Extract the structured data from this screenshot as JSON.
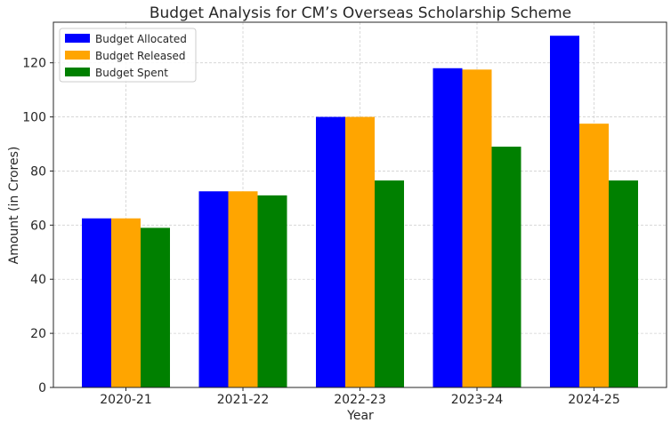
{
  "chart_data": {
    "type": "bar",
    "title": "Budget Analysis for CM’s Overseas Scholarship Scheme",
    "xlabel": "Year",
    "ylabel": "Amount (in Crores)",
    "categories": [
      "2020-21",
      "2021-22",
      "2022-23",
      "2023-24",
      "2024-25"
    ],
    "ylim": [
      0,
      135
    ],
    "yticks": [
      0,
      20,
      40,
      60,
      80,
      100,
      120
    ],
    "grid": true,
    "legend_position": "top-left",
    "series": [
      {
        "name": "Budget Allocated",
        "color": "#0000ff",
        "values": [
          62.5,
          72.5,
          100,
          118,
          130
        ]
      },
      {
        "name": "Budget Released",
        "color": "#ffa500",
        "values": [
          62.5,
          72.5,
          100,
          117.5,
          97.5
        ]
      },
      {
        "name": "Budget Spent",
        "color": "#008000",
        "values": [
          59,
          71,
          76.5,
          89,
          76.5
        ]
      }
    ]
  }
}
